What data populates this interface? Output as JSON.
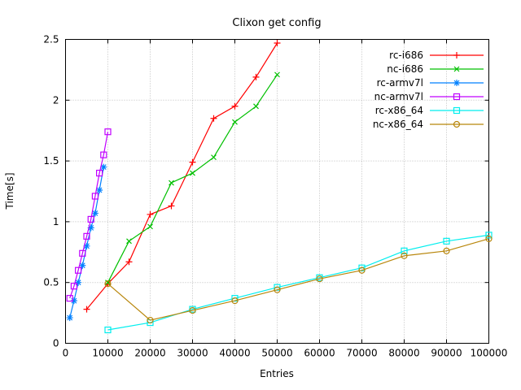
{
  "chart_data": {
    "type": "line",
    "title": "Clixon get config",
    "xlabel": "Entries",
    "ylabel": "Time[s]",
    "xlim": [
      0,
      100000
    ],
    "ylim": [
      0,
      2.5
    ],
    "xticks": [
      0,
      10000,
      20000,
      30000,
      40000,
      50000,
      60000,
      70000,
      80000,
      90000,
      100000
    ],
    "yticks": [
      0,
      0.5,
      1,
      1.5,
      2,
      2.5
    ],
    "grid": true,
    "legend_position": "top-right-inside",
    "background_color": "#ffffff",
    "axis_color": "#000000",
    "grid_color": "#bdbdbd",
    "series": [
      {
        "name": "rc-i686",
        "color": "#ff0000",
        "marker": "plus",
        "points": [
          [
            5000,
            0.28
          ],
          [
            10000,
            0.49
          ],
          [
            15000,
            0.67
          ],
          [
            20000,
            1.06
          ],
          [
            25000,
            1.13
          ],
          [
            30000,
            1.49
          ],
          [
            35000,
            1.85
          ],
          [
            40000,
            1.95
          ],
          [
            45000,
            2.19
          ],
          [
            50000,
            2.47
          ]
        ]
      },
      {
        "name": "nc-i686",
        "color": "#00c000",
        "marker": "cross",
        "points": [
          [
            10000,
            0.5
          ],
          [
            15000,
            0.84
          ],
          [
            20000,
            0.96
          ],
          [
            25000,
            1.32
          ],
          [
            30000,
            1.4
          ],
          [
            35000,
            1.53
          ],
          [
            40000,
            1.82
          ],
          [
            45000,
            1.95
          ],
          [
            50000,
            2.21
          ]
        ]
      },
      {
        "name": "rc-armv7l",
        "color": "#0080ff",
        "marker": "asterisk",
        "points": [
          [
            1000,
            0.21
          ],
          [
            2000,
            0.35
          ],
          [
            3000,
            0.5
          ],
          [
            4000,
            0.64
          ],
          [
            5000,
            0.8
          ],
          [
            6000,
            0.95
          ],
          [
            7000,
            1.07
          ],
          [
            8000,
            1.26
          ],
          [
            9000,
            1.45
          ]
        ]
      },
      {
        "name": "nc-armv7l",
        "color": "#c000ff",
        "marker": "square-open",
        "points": [
          [
            1000,
            0.37
          ],
          [
            2000,
            0.47
          ],
          [
            3000,
            0.6
          ],
          [
            4000,
            0.74
          ],
          [
            5000,
            0.88
          ],
          [
            6000,
            1.02
          ],
          [
            7000,
            1.21
          ],
          [
            8000,
            1.4
          ],
          [
            9000,
            1.55
          ],
          [
            10000,
            1.74
          ]
        ]
      },
      {
        "name": "rc-x86_64",
        "color": "#00eeee",
        "marker": "square-filled",
        "points": [
          [
            10000,
            0.11
          ],
          [
            20000,
            0.17
          ],
          [
            30000,
            0.28
          ],
          [
            40000,
            0.37
          ],
          [
            50000,
            0.46
          ],
          [
            60000,
            0.54
          ],
          [
            70000,
            0.62
          ],
          [
            80000,
            0.76
          ],
          [
            90000,
            0.84
          ],
          [
            100000,
            0.89
          ]
        ]
      },
      {
        "name": "nc-x86_64",
        "color": "#b8860b",
        "marker": "circle-open",
        "points": [
          [
            10000,
            0.49
          ],
          [
            20000,
            0.19
          ],
          [
            30000,
            0.27
          ],
          [
            40000,
            0.35
          ],
          [
            50000,
            0.44
          ],
          [
            60000,
            0.53
          ],
          [
            70000,
            0.6
          ],
          [
            80000,
            0.72
          ],
          [
            90000,
            0.76
          ],
          [
            100000,
            0.86
          ]
        ]
      }
    ]
  }
}
